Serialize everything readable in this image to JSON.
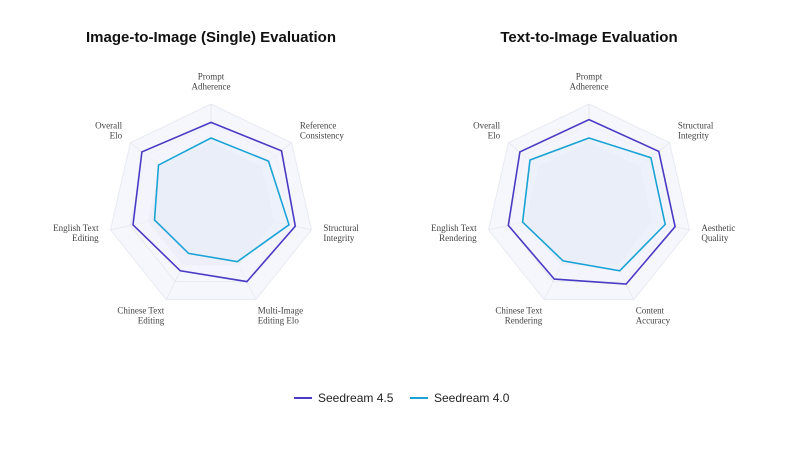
{
  "chart_data": [
    {
      "type": "radar",
      "title": "Image-to-Image (Single) Evaluation",
      "axes": [
        [
          "Prompt",
          "Adherence"
        ],
        [
          "Reference",
          "Consistency"
        ],
        [
          "Structural",
          "Integrity"
        ],
        [
          "Multi-Image",
          "Editing Elo"
        ],
        [
          "Chinese Text",
          "Editing"
        ],
        [
          "English Text",
          "Editing"
        ],
        [
          "Overall",
          "Elo"
        ]
      ],
      "range": [
        0,
        1
      ],
      "series": [
        {
          "name": "Seedream 4.5",
          "values": [
            0.92,
            0.98,
            0.94,
            0.9,
            0.77,
            0.87,
            0.96
          ]
        },
        {
          "name": "Seedream 4.0",
          "values": [
            0.75,
            0.8,
            0.87,
            0.66,
            0.56,
            0.63,
            0.73
          ]
        }
      ]
    },
    {
      "type": "radar",
      "title": "Text-to-Image Evaluation",
      "axes": [
        [
          "Prompt",
          "Adherence"
        ],
        [
          "Structural",
          "Integrity"
        ],
        [
          "Aesthetic",
          "Quality"
        ],
        [
          "Content",
          "Accuracy"
        ],
        [
          "Chinese Text",
          "Rendering"
        ],
        [
          "English Text",
          "Rendering"
        ],
        [
          "Overall",
          "Elo"
        ]
      ],
      "range": [
        0,
        1
      ],
      "series": [
        {
          "name": "Seedream 4.5",
          "values": [
            0.95,
            0.97,
            0.96,
            0.93,
            0.87,
            0.9,
            0.96
          ]
        },
        {
          "name": "Seedream 4.0",
          "values": [
            0.75,
            0.86,
            0.85,
            0.77,
            0.65,
            0.74,
            0.82
          ]
        }
      ]
    }
  ],
  "legend": [
    {
      "name": "Seedream 4.5",
      "color": "#4a3bc4"
    },
    {
      "name": "Seedream 4.0",
      "color": "#1ba3d6"
    }
  ],
  "colors": {
    "grid_stroke": "#e8eaf2",
    "ring_fill_outer": "#f6f7fc",
    "ring_fill_inner": "#e9ecf7",
    "series_fill_outer": "#f2f2fb",
    "series_fill_inner": "#e5eef9"
  }
}
